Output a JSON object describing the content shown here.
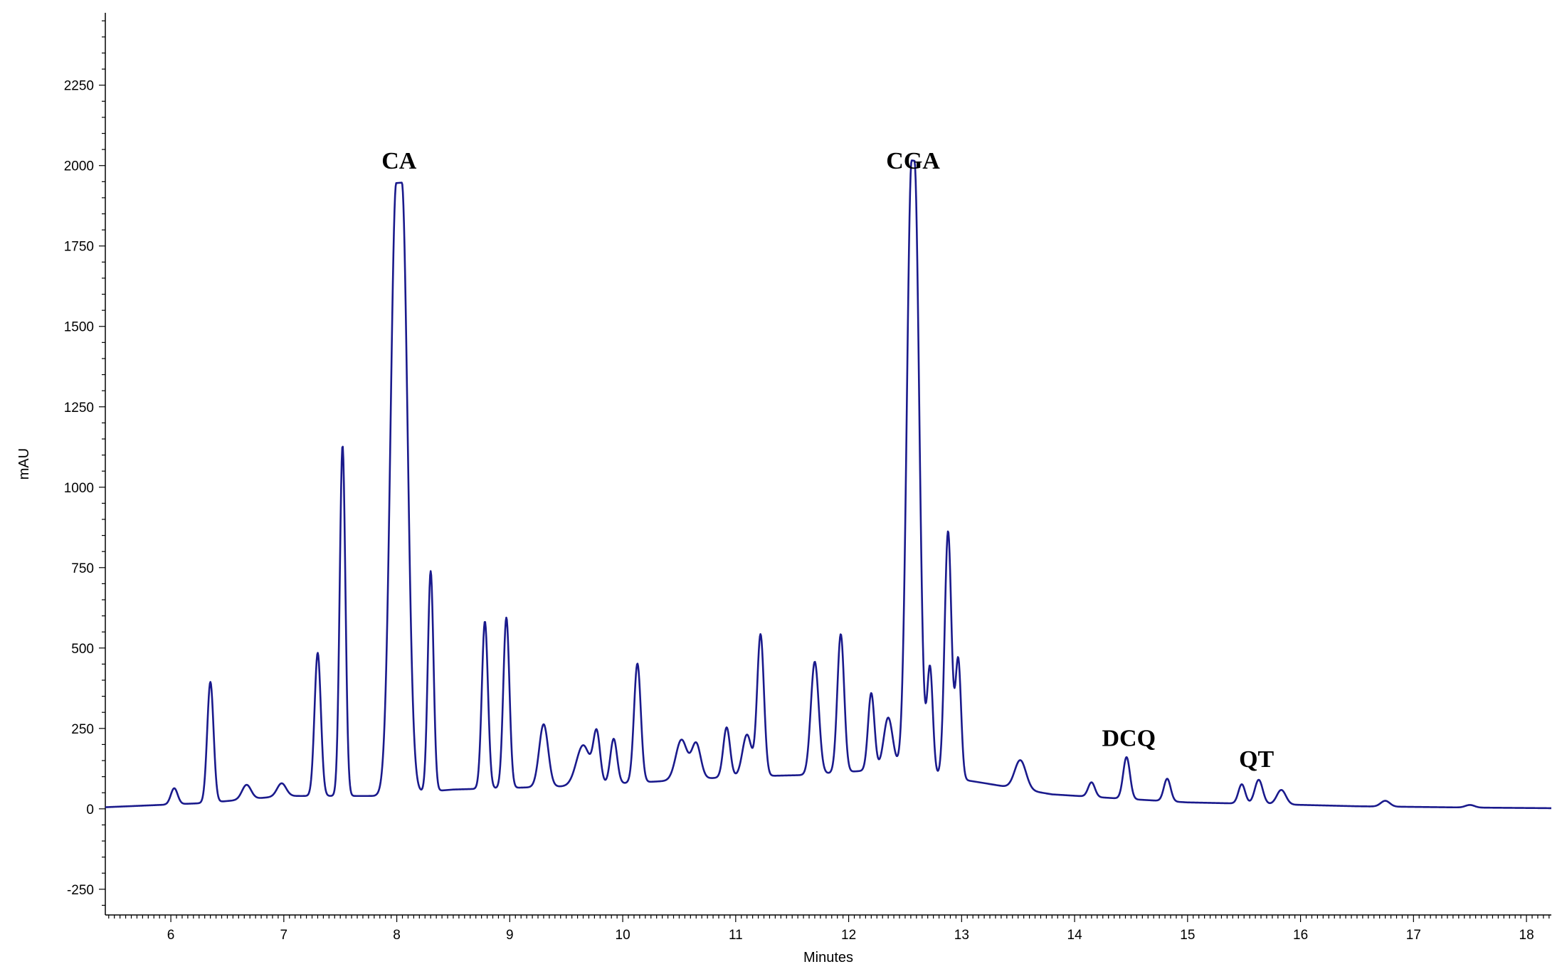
{
  "chart_data": {
    "type": "line",
    "xlabel": "Minutes",
    "ylabel": "mAU",
    "xlim": [
      5.42,
      18.22
    ],
    "ylim": [
      -330,
      2475
    ],
    "x_ticks": [
      6,
      7,
      8,
      9,
      10,
      11,
      12,
      13,
      14,
      15,
      16,
      17,
      18
    ],
    "y_ticks": [
      -250,
      0,
      250,
      500,
      750,
      1000,
      1250,
      1500,
      1750,
      2000,
      2250
    ],
    "x_tick_labels": [
      "6",
      "7",
      "8",
      "9",
      "10",
      "11",
      "12",
      "13",
      "14",
      "15",
      "16",
      "17",
      "18"
    ],
    "y_tick_labels": [
      "-250",
      "0",
      "250",
      "500",
      "750",
      "1000",
      "1250",
      "1500",
      "1750",
      "2000",
      "2250"
    ],
    "line_color": "#1a1a8c",
    "grid": false,
    "baseline": [
      [
        5.42,
        5
      ],
      [
        6.3,
        18
      ],
      [
        7.0,
        40
      ],
      [
        7.8,
        40
      ],
      [
        8.5,
        60
      ],
      [
        9.5,
        70
      ],
      [
        10.3,
        85
      ],
      [
        11.0,
        100
      ],
      [
        11.6,
        105
      ],
      [
        12.4,
        125
      ],
      [
        13.2,
        80
      ],
      [
        13.8,
        45
      ],
      [
        14.4,
        32
      ],
      [
        15.0,
        20
      ],
      [
        15.8,
        14
      ],
      [
        16.5,
        8
      ],
      [
        17.5,
        4
      ],
      [
        18.22,
        2
      ]
    ],
    "peaks": [
      {
        "t": 6.03,
        "h": 50,
        "w": 0.03
      },
      {
        "t": 6.35,
        "h": 375,
        "w": 0.028
      },
      {
        "t": 6.67,
        "h": 45,
        "w": 0.04
      },
      {
        "t": 6.98,
        "h": 40,
        "w": 0.04
      },
      {
        "t": 7.3,
        "h": 445,
        "w": 0.028
      },
      {
        "t": 7.52,
        "h": 1090,
        "w": 0.025
      },
      {
        "t": 8.02,
        "h": 1900,
        "w": 0.05,
        "flat": 0.05
      },
      {
        "t": 8.3,
        "h": 685,
        "w": 0.025
      },
      {
        "t": 8.78,
        "h": 520,
        "w": 0.027
      },
      {
        "t": 8.97,
        "h": 530,
        "w": 0.027
      },
      {
        "t": 9.3,
        "h": 195,
        "w": 0.04
      },
      {
        "t": 9.65,
        "h": 125,
        "w": 0.06
      },
      {
        "t": 9.77,
        "h": 155,
        "w": 0.03
      },
      {
        "t": 9.92,
        "h": 140,
        "w": 0.03
      },
      {
        "t": 10.13,
        "h": 370,
        "w": 0.03
      },
      {
        "t": 10.52,
        "h": 125,
        "w": 0.05
      },
      {
        "t": 10.65,
        "h": 110,
        "w": 0.04
      },
      {
        "t": 10.92,
        "h": 155,
        "w": 0.03
      },
      {
        "t": 11.1,
        "h": 130,
        "w": 0.04
      },
      {
        "t": 11.22,
        "h": 440,
        "w": 0.03
      },
      {
        "t": 11.7,
        "h": 350,
        "w": 0.035
      },
      {
        "t": 11.93,
        "h": 430,
        "w": 0.03
      },
      {
        "t": 12.2,
        "h": 240,
        "w": 0.028
      },
      {
        "t": 12.35,
        "h": 160,
        "w": 0.04
      },
      {
        "t": 12.57,
        "h": 1900,
        "w": 0.042,
        "flat": 0.025
      },
      {
        "t": 12.72,
        "h": 330,
        "w": 0.025
      },
      {
        "t": 12.88,
        "h": 765,
        "w": 0.03
      },
      {
        "t": 12.97,
        "h": 370,
        "w": 0.025
      },
      {
        "t": 13.52,
        "h": 90,
        "w": 0.05
      },
      {
        "t": 14.15,
        "h": 45,
        "w": 0.03
      },
      {
        "t": 14.46,
        "h": 130,
        "w": 0.03
      },
      {
        "t": 14.82,
        "h": 70,
        "w": 0.03
      },
      {
        "t": 15.48,
        "h": 60,
        "w": 0.03
      },
      {
        "t": 15.63,
        "h": 75,
        "w": 0.035
      },
      {
        "t": 15.83,
        "h": 45,
        "w": 0.04
      },
      {
        "t": 16.75,
        "h": 18,
        "w": 0.04
      },
      {
        "t": 17.5,
        "h": 8,
        "w": 0.04
      }
    ],
    "annotations": [
      {
        "label": "CA",
        "x": 8.02,
        "y": 1990
      },
      {
        "label": "CGA",
        "x": 12.57,
        "y": 1990
      },
      {
        "label": "DCQ",
        "x": 14.48,
        "y": 195
      },
      {
        "label": "QT",
        "x": 15.61,
        "y": 130
      }
    ]
  }
}
